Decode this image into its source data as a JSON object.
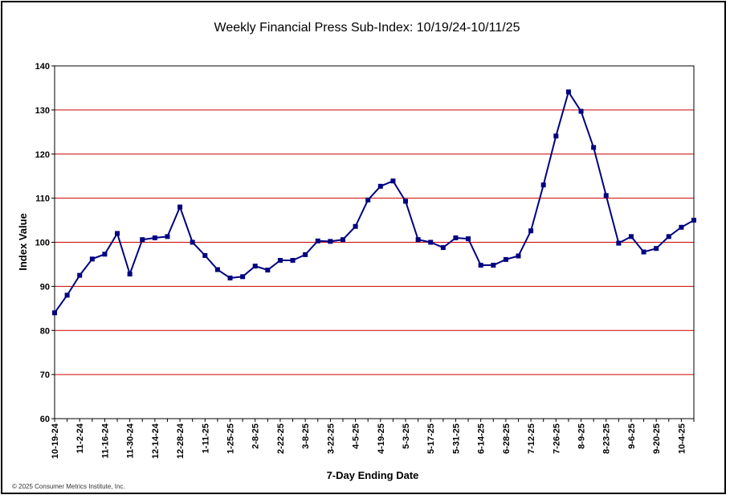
{
  "chart_data": {
    "type": "line",
    "title": "Weekly Financial Press Sub-Index: 10/19/24-10/11/25",
    "xlabel": "7-Day Ending Date",
    "ylabel": "Index Value",
    "ylim": [
      60,
      140
    ],
    "yticks": [
      60,
      70,
      80,
      90,
      100,
      110,
      120,
      130,
      140
    ],
    "grid": true,
    "gridline_color": "#cc0000",
    "line_color": "#000080",
    "x_tick_labels": [
      "10-19-24",
      "11-2-24",
      "11-16-24",
      "11-30-24",
      "12-14-24",
      "12-28-24",
      "1-11-25",
      "1-25-25",
      "2-8-25",
      "2-22-25",
      "3-8-25",
      "3-22-25",
      "4-5-25",
      "4-19-25",
      "5-3-25",
      "5-17-25",
      "5-31-25",
      "6-14-25",
      "6-28-25",
      "7-12-25",
      "7-26-25",
      "8-9-25",
      "8-23-25",
      "9-6-25",
      "9-20-25",
      "10-4-25"
    ],
    "x": [
      "10-19-24",
      "10-26-24",
      "11-2-24",
      "11-9-24",
      "11-16-24",
      "11-23-24",
      "11-30-24",
      "12-7-24",
      "12-14-24",
      "12-21-24",
      "12-28-24",
      "1-4-25",
      "1-11-25",
      "1-18-25",
      "1-25-25",
      "2-1-25",
      "2-8-25",
      "2-15-25",
      "2-22-25",
      "3-1-25",
      "3-8-25",
      "3-15-25",
      "3-22-25",
      "3-29-25",
      "4-5-25",
      "4-12-25",
      "4-19-25",
      "4-26-25",
      "5-3-25",
      "5-10-25",
      "5-17-25",
      "5-24-25",
      "5-31-25",
      "6-7-25",
      "6-14-25",
      "6-21-25",
      "6-28-25",
      "7-5-25",
      "7-12-25",
      "7-19-25",
      "7-26-25",
      "8-2-25",
      "8-9-25",
      "8-16-25",
      "8-23-25",
      "8-30-25",
      "9-6-25",
      "9-13-25",
      "9-20-25",
      "9-27-25",
      "10-4-25",
      "10-11-25"
    ],
    "values": [
      84,
      88,
      92.5,
      96.2,
      97.3,
      102,
      92.8,
      100.6,
      101,
      101.3,
      108,
      100,
      97,
      93.8,
      91.9,
      92.2,
      94.6,
      93.7,
      95.9,
      95.9,
      97.2,
      100.3,
      100.2,
      100.6,
      103.6,
      109.6,
      112.7,
      113.9,
      109.3,
      100.6,
      100,
      98.8,
      101,
      100.8,
      94.8,
      94.8,
      96.1,
      96.9,
      102.6,
      113,
      124.1,
      134.1,
      129.7,
      121.5,
      110.6,
      99.8,
      101.3,
      97.8,
      98.6,
      101.3,
      103.4,
      105
    ]
  },
  "footer": {
    "copyright": "© 2025 Consumer Metrics Institute, Inc."
  }
}
